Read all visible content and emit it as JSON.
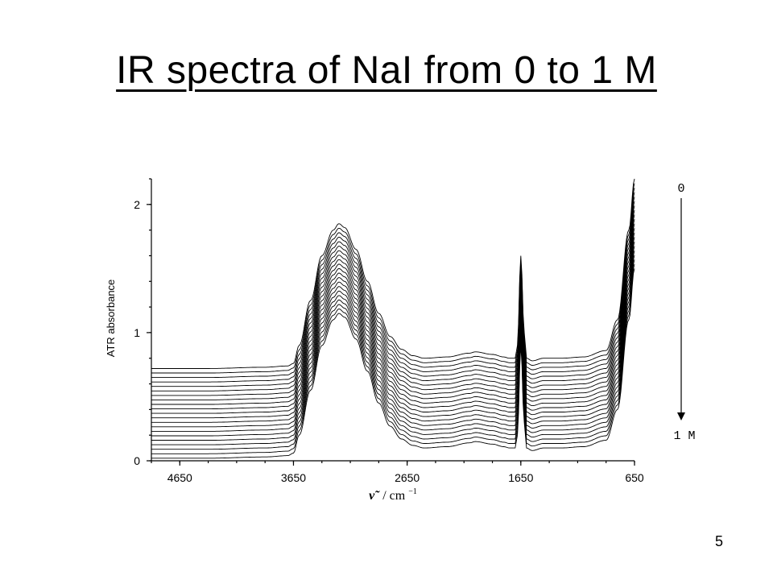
{
  "slide": {
    "title": "IR spectra of NaI from 0 to 1 M",
    "page_number": "5"
  },
  "chart_data": {
    "type": "line",
    "title": "",
    "xlabel_symbol": "ν̃",
    "xlabel_unit": "/ cm",
    "xlabel_exponent": "−1",
    "ylabel": "ATR absorbance",
    "x_direction": "descending",
    "xlim": [
      4900,
      650
    ],
    "ylim": [
      0,
      2.2
    ],
    "x_ticks": [
      4650,
      3650,
      2650,
      1650,
      650
    ],
    "y_ticks": [
      0,
      1,
      2
    ],
    "grid": false,
    "series_count": 21,
    "series_offset_step": 0.035,
    "concentration_label_top": "0",
    "concentration_label_bottom": "1 M",
    "base_spectrum": {
      "x": [
        4900,
        4400,
        3900,
        3700,
        3650,
        3600,
        3500,
        3400,
        3300,
        3250,
        3200,
        3100,
        3000,
        2900,
        2800,
        2700,
        2600,
        2500,
        2300,
        2100,
        2050,
        1900,
        1800,
        1750,
        1700,
        1680,
        1650,
        1620,
        1600,
        1550,
        1450,
        1300,
        1100,
        900,
        800,
        700,
        650
      ],
      "y": [
        0.02,
        0.02,
        0.03,
        0.04,
        0.06,
        0.2,
        0.55,
        0.9,
        1.1,
        1.15,
        1.12,
        0.95,
        0.7,
        0.45,
        0.27,
        0.17,
        0.12,
        0.1,
        0.11,
        0.14,
        0.15,
        0.13,
        0.11,
        0.1,
        0.1,
        0.2,
        0.9,
        0.3,
        0.1,
        0.08,
        0.1,
        0.1,
        0.11,
        0.16,
        0.4,
        1.1,
        1.5
      ]
    }
  }
}
